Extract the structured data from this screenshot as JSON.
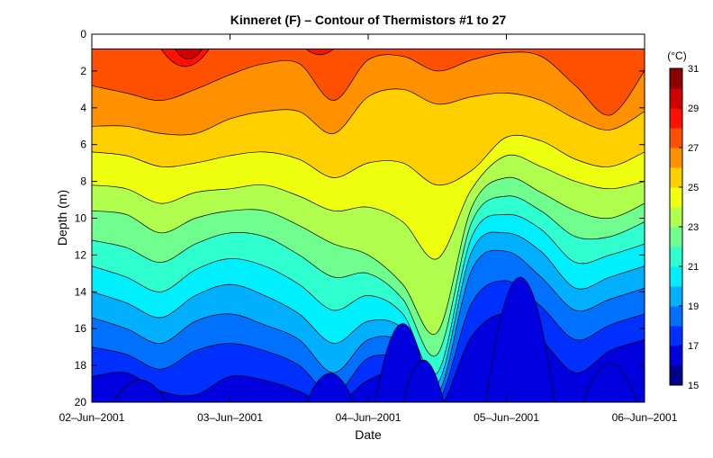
{
  "chart_data": {
    "type": "heatmap",
    "title": "Kinneret (F) – Contour of Thermistors #1 to 27",
    "xlabel": "Date",
    "ylabel": "Depth (m)",
    "x_ticks": [
      "02–Jun–2001",
      "03–Jun–2001",
      "04–Jun–2001",
      "05–Jun–2001",
      "06–Jun–2001"
    ],
    "y_ticks": [
      "0",
      "2",
      "4",
      "6",
      "8",
      "10",
      "12",
      "14",
      "16",
      "18",
      "20"
    ],
    "xlim": [
      "2001-06-02",
      "2001-06-06"
    ],
    "ylim": [
      0,
      20
    ],
    "y_inverted": true,
    "data_top_depth": 0.8,
    "colorbar": {
      "unit": "(°C)",
      "min": 15,
      "max": 31,
      "step": 1,
      "tick_labels": [
        "15",
        "17",
        "19",
        "21",
        "23",
        "25",
        "27",
        "29",
        "31"
      ],
      "colors": [
        "#00008f",
        "#0000df",
        "#0030ff",
        "#0070ff",
        "#00b0ff",
        "#00efff",
        "#30ffcf",
        "#70ff8f",
        "#b0ff4f",
        "#efff10",
        "#ffcf00",
        "#ff9000",
        "#ff5000",
        "#ff1000",
        "#cf0000",
        "#8f0000"
      ]
    },
    "x_days": [
      0,
      0.25,
      0.5,
      0.75,
      1,
      1.25,
      1.5,
      1.75,
      2,
      2.25,
      2.5,
      2.75,
      3,
      3.25,
      3.5,
      3.75,
      4
    ],
    "isotherms": [
      {
        "temp": 27,
        "depth": [
          2.8,
          3.2,
          3.6,
          3.0,
          2.2,
          1.6,
          1.6,
          3.6,
          1.4,
          1.2,
          2.0,
          1.4,
          1.0,
          1.2,
          2.8,
          4.4,
          2.0
        ]
      },
      {
        "temp": 26,
        "depth": [
          5.0,
          5.0,
          5.4,
          5.4,
          4.6,
          4.2,
          4.2,
          5.4,
          3.4,
          3.0,
          3.8,
          3.4,
          3.2,
          3.6,
          4.6,
          5.2,
          4.2
        ]
      },
      {
        "temp": 25,
        "depth": [
          6.4,
          6.6,
          7.2,
          7.0,
          6.6,
          6.4,
          6.8,
          7.8,
          7.0,
          7.0,
          8.2,
          7.4,
          5.6,
          5.8,
          6.8,
          7.2,
          6.4
        ]
      },
      {
        "temp": 24,
        "depth": [
          8.2,
          8.4,
          9.2,
          8.6,
          8.4,
          8.2,
          8.8,
          9.6,
          9.4,
          10.2,
          12.2,
          8.4,
          6.6,
          7.2,
          8.0,
          8.4,
          8.0
        ]
      },
      {
        "temp": 23,
        "depth": [
          9.6,
          9.8,
          10.8,
          10.0,
          9.6,
          9.6,
          10.4,
          11.4,
          12.0,
          13.6,
          16.2,
          9.4,
          7.8,
          8.6,
          9.6,
          10.0,
          9.2
        ]
      },
      {
        "temp": 22,
        "depth": [
          11.2,
          11.6,
          12.4,
          11.4,
          10.8,
          11.0,
          12.0,
          13.2,
          13.0,
          14.4,
          17.4,
          10.2,
          8.8,
          9.6,
          11.0,
          11.0,
          10.2
        ]
      },
      {
        "temp": 21,
        "depth": [
          12.6,
          13.2,
          14.0,
          12.8,
          12.2,
          12.6,
          13.6,
          15.0,
          14.2,
          15.2,
          18.4,
          11.0,
          9.8,
          10.6,
          12.4,
          12.0,
          11.4
        ]
      },
      {
        "temp": 20,
        "depth": [
          14.0,
          14.6,
          15.4,
          14.2,
          13.6,
          14.2,
          15.2,
          16.8,
          15.6,
          16.0,
          19.0,
          11.8,
          10.8,
          11.8,
          13.8,
          13.2,
          12.6
        ]
      },
      {
        "temp": 19,
        "depth": [
          15.4,
          16.0,
          16.8,
          15.6,
          15.2,
          15.8,
          16.6,
          18.4,
          16.6,
          16.8,
          19.6,
          12.8,
          11.8,
          13.2,
          15.0,
          14.4,
          13.8
        ]
      },
      {
        "temp": 18,
        "depth": [
          17.0,
          17.4,
          18.2,
          17.2,
          16.8,
          17.2,
          18.0,
          19.6,
          17.6,
          17.8,
          20.0,
          14.6,
          13.4,
          14.8,
          16.6,
          15.8,
          15.2
        ]
      },
      {
        "temp": 17,
        "depth": [
          18.6,
          18.4,
          19.4,
          19.6,
          18.6,
          18.8,
          19.4,
          20.2,
          18.8,
          18.4,
          20.4,
          16.4,
          15.2,
          16.6,
          18.4,
          17.2,
          16.6
        ]
      }
    ],
    "warm_patches": [
      {
        "temp": 28,
        "day_start": 0.5,
        "day_end": 0.85,
        "depth_max": 2.0
      },
      {
        "temp": 29,
        "day_start": 0.6,
        "day_end": 0.8,
        "depth_max": 1.5
      },
      {
        "temp": 28,
        "day_start": 1.55,
        "day_end": 1.75,
        "depth_max": 1.2
      }
    ],
    "cold_patches": [
      {
        "temp": 16,
        "day_start": 0.15,
        "day_end": 0.55,
        "depth_min": 18.6
      },
      {
        "temp": 16,
        "day_start": 1.55,
        "day_end": 1.9,
        "depth_min": 18.2
      },
      {
        "temp": 16,
        "day_start": 2.05,
        "day_end": 2.45,
        "depth_min": 15.2
      },
      {
        "temp": 16,
        "day_start": 2.25,
        "day_end": 2.55,
        "depth_min": 17.4
      },
      {
        "temp": 16,
        "day_start": 2.85,
        "day_end": 3.35,
        "depth_min": 12.4
      },
      {
        "temp": 16,
        "day_start": 3.55,
        "day_end": 3.95,
        "depth_min": 17.6
      }
    ]
  }
}
